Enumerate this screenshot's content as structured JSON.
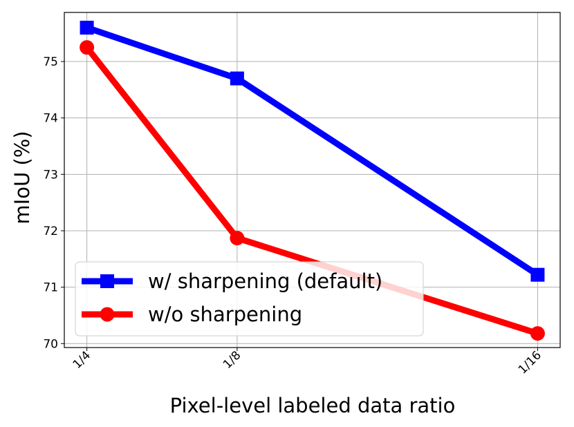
{
  "chart_data": {
    "type": "line",
    "categories": [
      "1/4",
      "1/8",
      "1/16"
    ],
    "x": [
      0.25,
      0.125,
      0.0625
    ],
    "x_scale": "reciprocal",
    "xlabel": "Pixel-level labeled data ratio",
    "ylabel": "mIoU (%)",
    "ylim": [
      69.93,
      75.87
    ],
    "yticks": [
      70,
      71,
      72,
      73,
      74,
      75
    ],
    "grid": true,
    "legend_position": "lower-left",
    "series": [
      {
        "name": "w/ sharpening (default)",
        "values": [
          75.6,
          74.7,
          71.22
        ],
        "color": "#0000ff",
        "marker": "square"
      },
      {
        "name": "w/o sharpening",
        "values": [
          75.25,
          71.87,
          70.18
        ],
        "color": "#ff0000",
        "marker": "circle"
      }
    ]
  }
}
